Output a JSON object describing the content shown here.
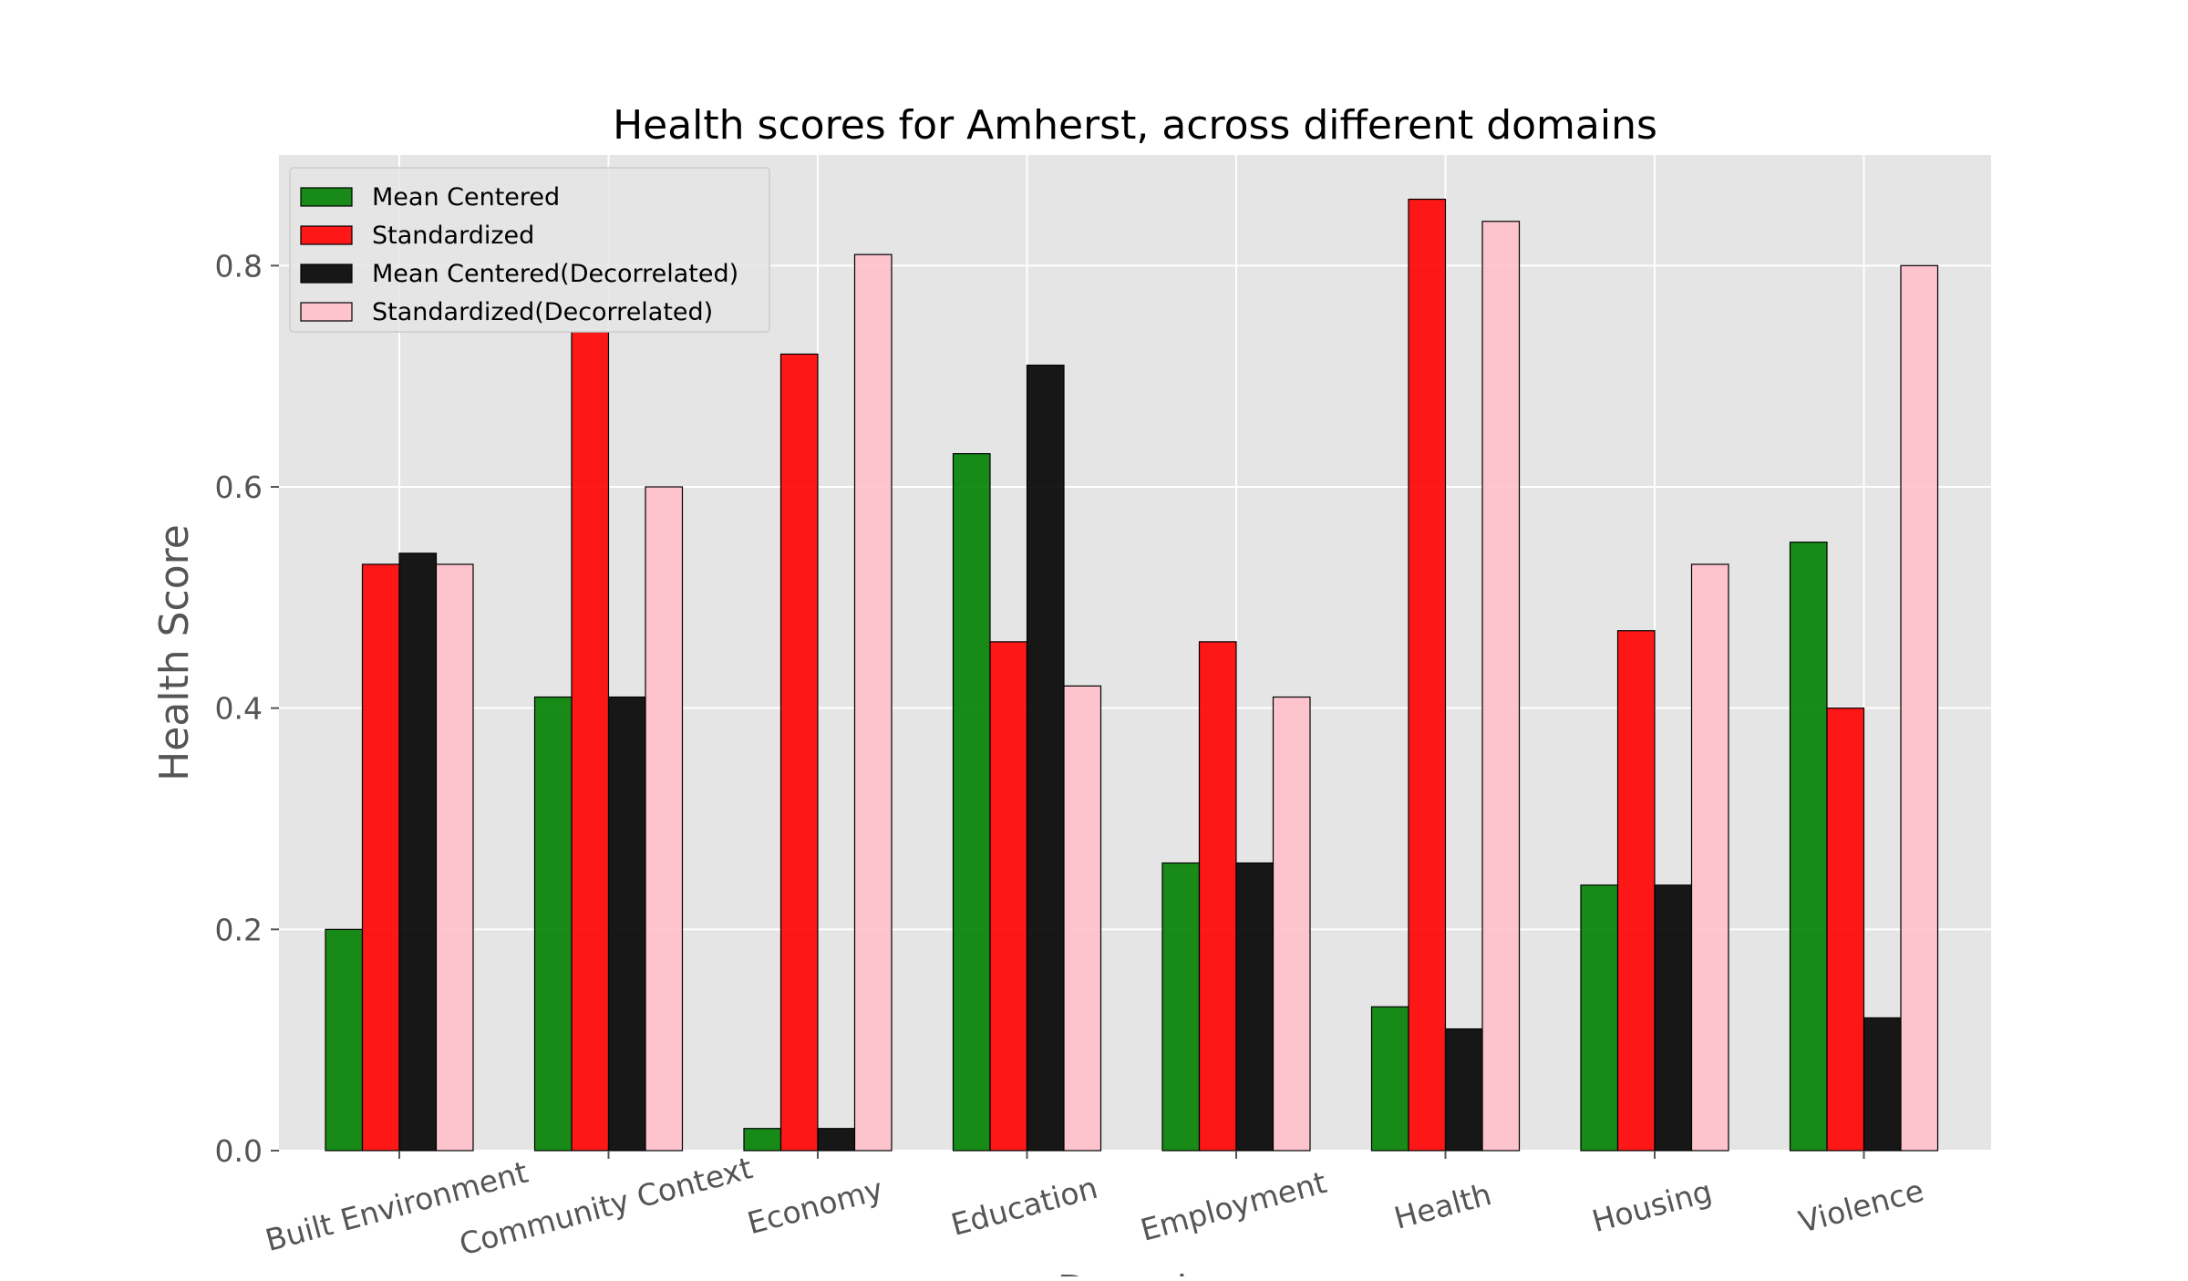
{
  "chart_data": {
    "type": "bar",
    "title": "Health scores for Amherst, across different domains",
    "ylabel": "Health Score",
    "xlabel": "Domain",
    "ylim": [
      0,
      0.9
    ],
    "yticks": [
      "0.0",
      "0.2",
      "0.4",
      "0.6",
      "0.8"
    ],
    "ytick_values": [
      0,
      0.2,
      0.4,
      0.6,
      0.8
    ],
    "categories": [
      "Built Environment",
      "Community Context",
      "Economy",
      "Education",
      "Employment",
      "Health",
      "Housing",
      "Violence"
    ],
    "series": [
      {
        "name": "Mean Centered",
        "color": "#008000",
        "values": [
          0.2,
          0.41,
          0.02,
          0.63,
          0.26,
          0.13,
          0.24,
          0.55
        ]
      },
      {
        "name": "Standardized",
        "color": "#ff0000",
        "values": [
          0.53,
          0.74,
          0.72,
          0.46,
          0.46,
          0.86,
          0.47,
          0.4
        ]
      },
      {
        "name": "Mean Centered(Decorrelated)",
        "color": "#000000",
        "values": [
          0.54,
          0.41,
          0.02,
          0.71,
          0.26,
          0.11,
          0.24,
          0.12
        ]
      },
      {
        "name": "Standardized(Decorrelated)",
        "color": "#ffc0cb",
        "values": [
          0.53,
          0.6,
          0.81,
          0.42,
          0.41,
          0.84,
          0.53,
          0.8
        ]
      }
    ],
    "grid": true,
    "legend_position": "top-left",
    "background": "#e5e5e5",
    "grid_color": "#ffffff"
  }
}
